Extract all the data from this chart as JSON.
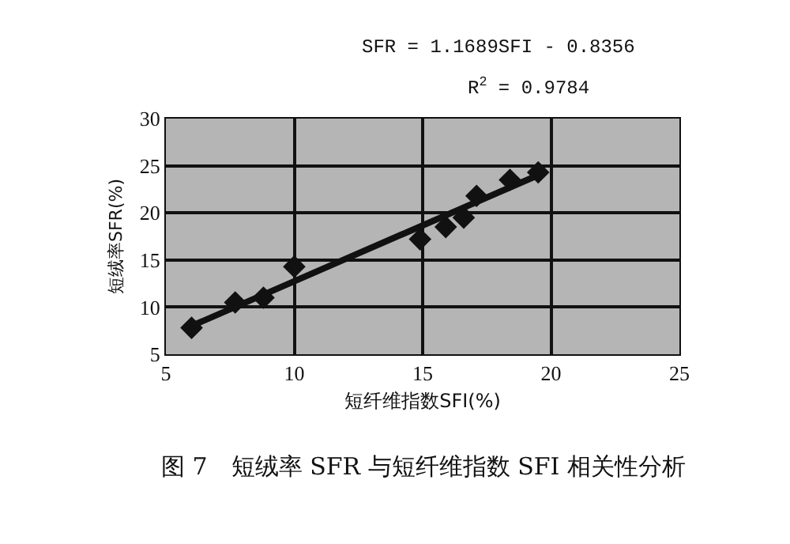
{
  "chart_data": {
    "type": "scatter",
    "xlabel": "短纤维指数SFI(%)",
    "ylabel": "短绒率SFR(%)",
    "xlim": [
      5,
      25
    ],
    "xticks": [
      5,
      10,
      15,
      20,
      25
    ],
    "ylim": [
      5,
      30
    ],
    "yticks": [
      5,
      10,
      15,
      20,
      25,
      30
    ],
    "grid": true,
    "series": [
      {
        "type": "scatter",
        "marker": "diamond",
        "color": "#111111",
        "x": [
          6.0,
          7.7,
          8.8,
          10.0,
          14.9,
          15.9,
          16.6,
          17.1,
          18.4,
          19.5
        ],
        "values": [
          7.8,
          10.5,
          11.0,
          14.3,
          17.2,
          18.5,
          19.5,
          21.8,
          23.5,
          24.3
        ]
      },
      {
        "type": "line",
        "color": "#111111",
        "x": [
          6.0,
          19.5
        ],
        "values": [
          8.0,
          24.0
        ]
      }
    ],
    "annotations": [
      "SFR = 1.1689SFI - 0.8356",
      "R$^{2}$ = 0.9784",
      "图 7　短绒率 SFR 与短纤维指数 SFI 相关性分析"
    ]
  }
}
